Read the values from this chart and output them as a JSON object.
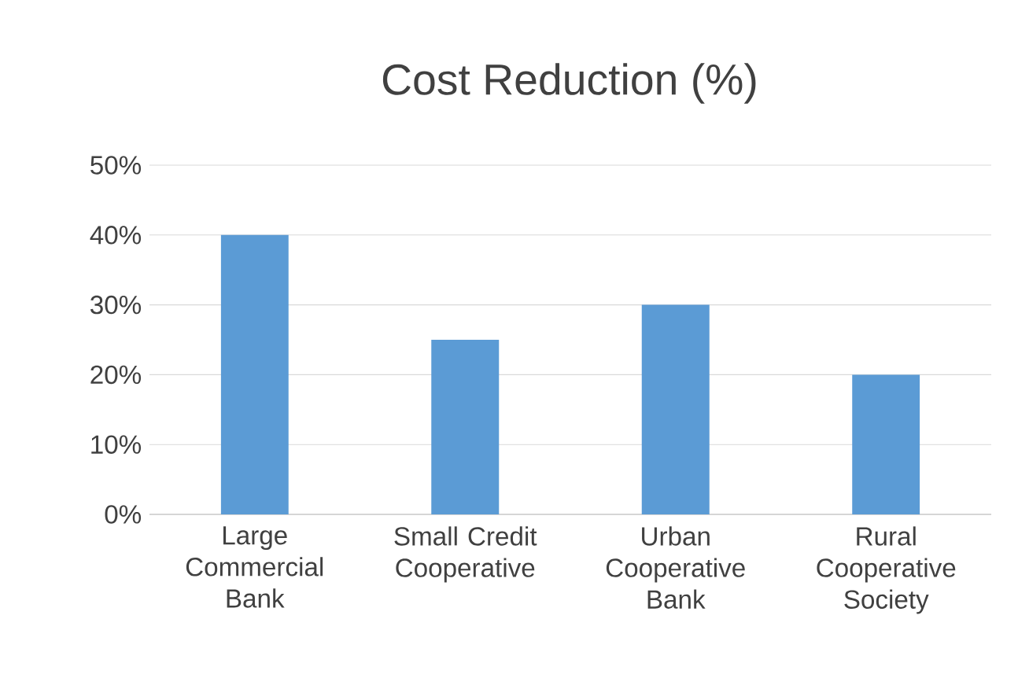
{
  "chart_data": {
    "type": "bar",
    "title": "Cost Reduction (%)",
    "categories": [
      "Large Commercial Bank",
      "Small Credit Cooperative",
      "Urban Cooperative Bank",
      "Rural Cooperative Society"
    ],
    "values": [
      40,
      25,
      30,
      20
    ],
    "color": "#5b9bd5",
    "ylim": [
      0,
      50
    ],
    "yticks": [
      {
        "value": 0,
        "label": "0%"
      },
      {
        "value": 10,
        "label": "10%"
      },
      {
        "value": 20,
        "label": "20%"
      },
      {
        "value": 30,
        "label": "30%"
      },
      {
        "value": 40,
        "label": "40%"
      },
      {
        "value": 50,
        "label": "50%"
      }
    ],
    "grid": "y"
  }
}
